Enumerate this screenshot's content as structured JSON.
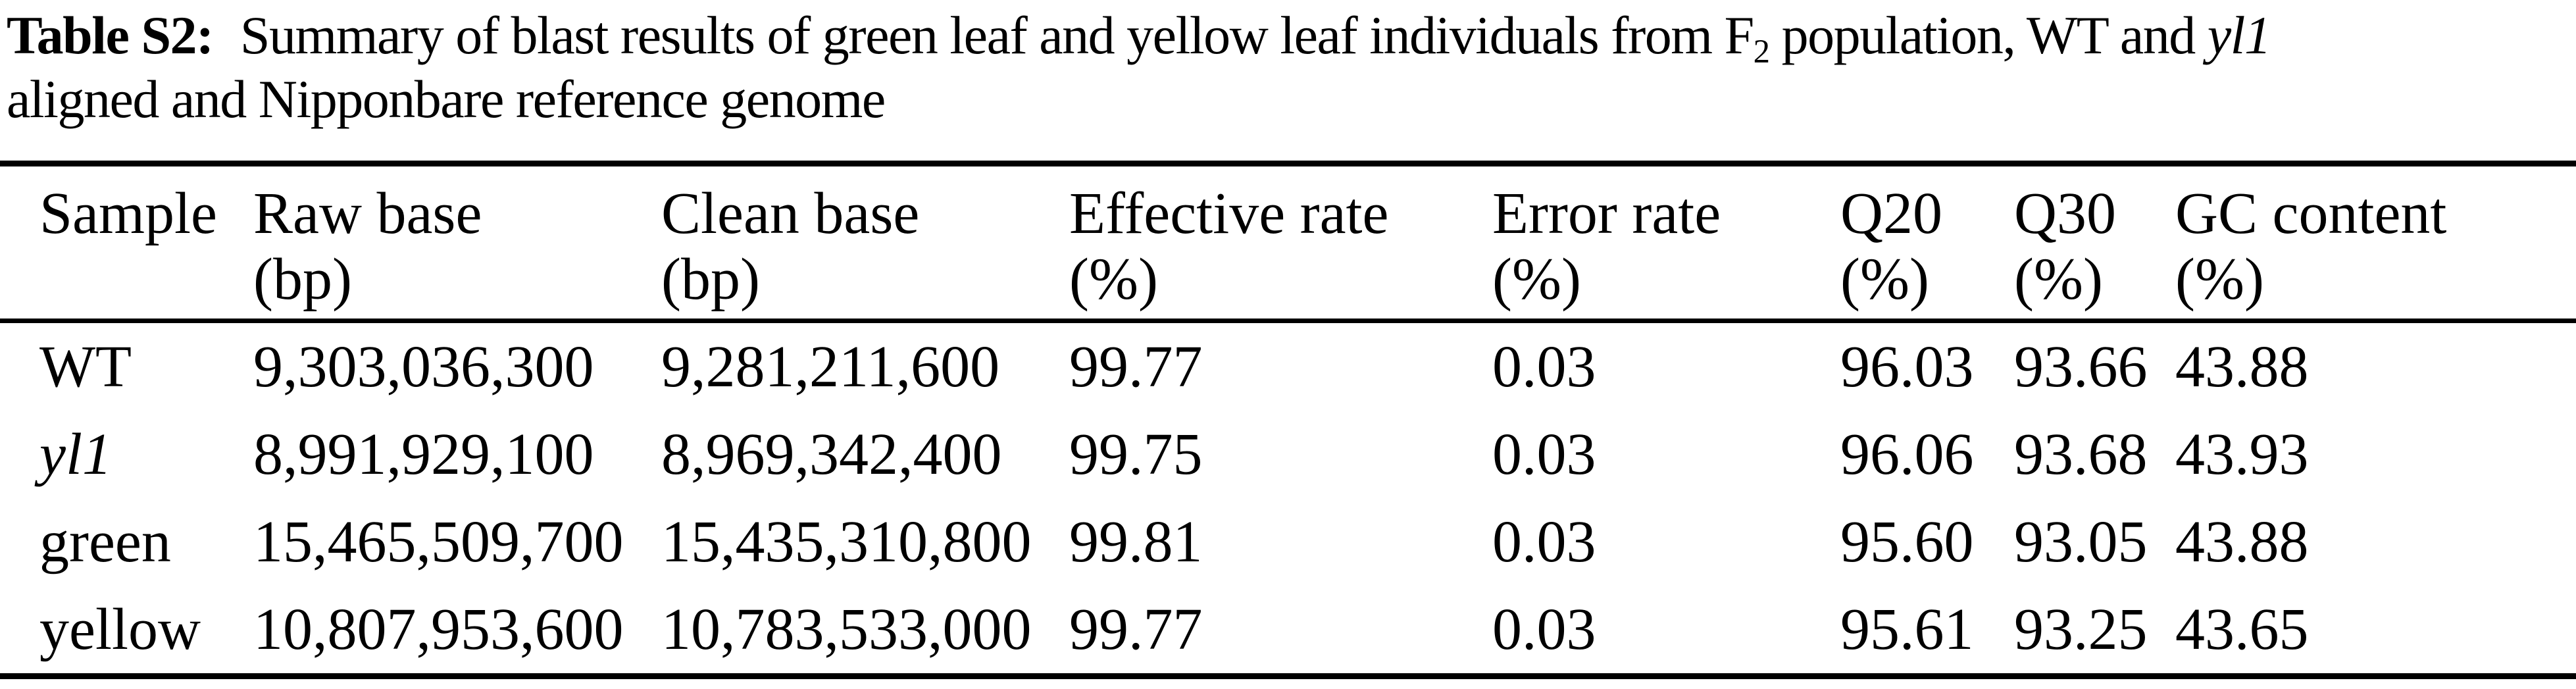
{
  "title": {
    "label": "Table S2:",
    "line1_a": " Summary of blast results of green leaf and yellow leaf individuals from F",
    "f_subscript": "2",
    "line1_b": " population, WT and ",
    "gene": "yl1",
    "line2": "aligned and Nipponbare reference genome"
  },
  "table": {
    "headers": [
      {
        "label": "Sample",
        "unit": ""
      },
      {
        "label": "Raw base",
        "unit": "(bp)"
      },
      {
        "label": "Clean base",
        "unit": "(bp)"
      },
      {
        "label": "Effective rate",
        "unit": "(%)"
      },
      {
        "label": "Error rate",
        "unit": "(%)"
      },
      {
        "label": "Q20",
        "unit": "(%)"
      },
      {
        "label": "Q30",
        "unit": "(%)"
      },
      {
        "label": "GC content",
        "unit": "(%)"
      }
    ],
    "rows": [
      {
        "sample": "WT",
        "raw_base": "9,303,036,300",
        "clean_base": "9,281,211,600",
        "effective_rate": "99.77",
        "error_rate": "0.03",
        "q20": "96.03",
        "q30": "93.66",
        "gc_content": "43.88"
      },
      {
        "sample": "yl1",
        "raw_base": "8,991,929,100",
        "clean_base": "8,969,342,400",
        "effective_rate": "99.75",
        "error_rate": "0.03",
        "q20": "96.06",
        "q30": "93.68",
        "gc_content": "43.93"
      },
      {
        "sample": "green",
        "raw_base": "15,465,509,700",
        "clean_base": "15,435,310,800",
        "effective_rate": "99.81",
        "error_rate": "0.03",
        "q20": "95.60",
        "q30": "93.05",
        "gc_content": "43.88"
      },
      {
        "sample": "yellow",
        "raw_base": "10,807,953,600",
        "clean_base": "10,783,533,000",
        "effective_rate": "99.77",
        "error_rate": "0.03",
        "q20": "95.61",
        "q30": "93.25",
        "gc_content": "43.65"
      }
    ]
  },
  "colors": {
    "text": "#000000",
    "background": "#ffffff",
    "rule": "#000000"
  }
}
